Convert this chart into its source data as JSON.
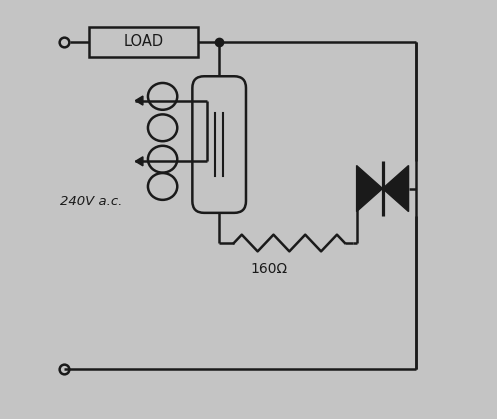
{
  "bg_color": "#c4c4c4",
  "line_color": "#1a1a1a",
  "text_color": "#1a1a1a",
  "load_label": "LOAD",
  "voltage_label": "240V a.c.",
  "resistor_label": "160Ω",
  "fig_width": 4.97,
  "fig_height": 4.19,
  "dpi": 100
}
